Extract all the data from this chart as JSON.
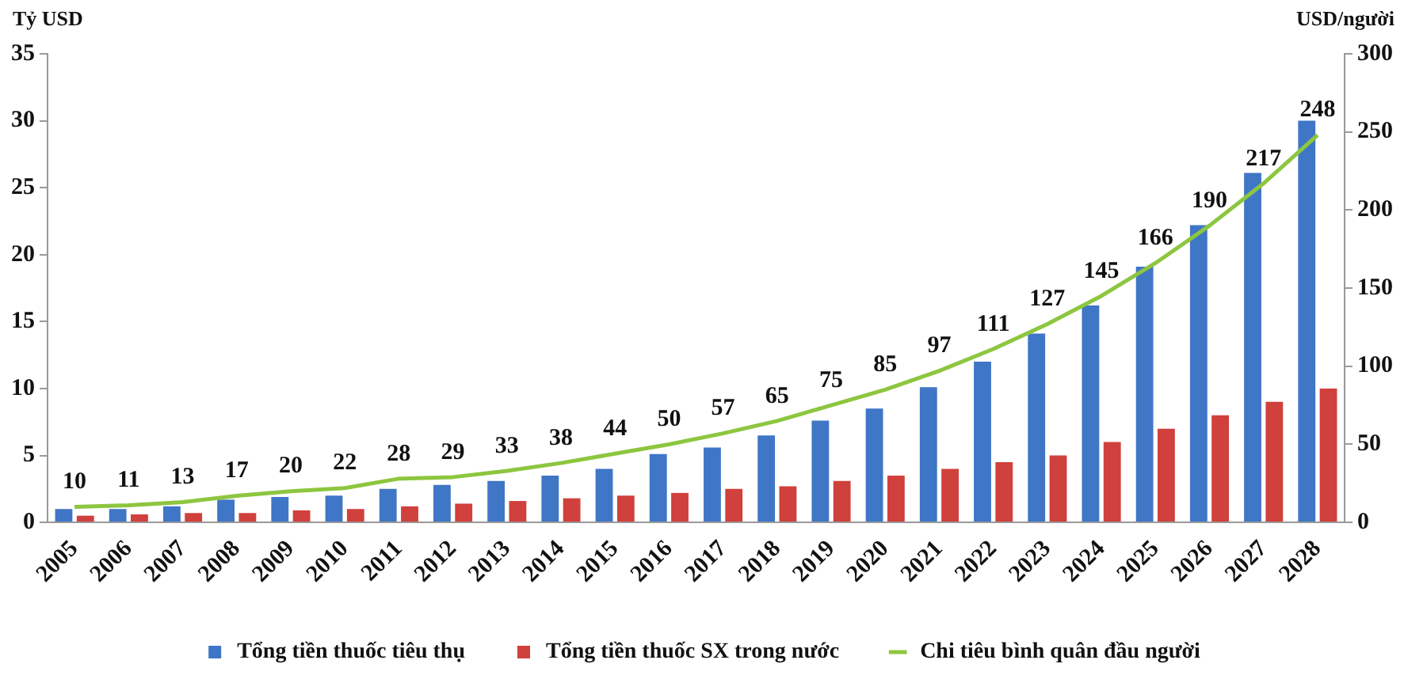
{
  "chart_data": {
    "type": "bar",
    "ylabel": "Tỷ USD",
    "y2label": "USD/người",
    "categories": [
      "2005",
      "2006",
      "2007",
      "2008",
      "2009",
      "2010",
      "2011",
      "2012",
      "2013",
      "2014",
      "2015",
      "2016",
      "2017",
      "2018",
      "2019",
      "2020",
      "2021",
      "2022",
      "2023",
      "2024",
      "2025",
      "2026",
      "2027",
      "2028"
    ],
    "series": [
      {
        "name": "Tổng tiền thuốc tiêu thụ",
        "color": "#3f76c6",
        "values": [
          1.0,
          1.0,
          1.2,
          1.7,
          1.9,
          2.0,
          2.5,
          2.8,
          3.1,
          3.5,
          4.0,
          5.1,
          5.6,
          6.5,
          7.6,
          8.5,
          10.1,
          12.0,
          14.1,
          16.2,
          19.1,
          22.2,
          26.1,
          30.0
        ]
      },
      {
        "name": "Tổng tiền thuốc SX trong nước",
        "color": "#d0403c",
        "values": [
          0.5,
          0.6,
          0.7,
          0.7,
          0.9,
          1.0,
          1.2,
          1.4,
          1.6,
          1.8,
          2.0,
          2.2,
          2.5,
          2.7,
          3.1,
          3.5,
          4.0,
          4.5,
          5.0,
          6.0,
          7.0,
          8.0,
          9.0,
          10.0
        ]
      },
      {
        "name": "Chi tiêu bình quân đầu người",
        "type": "line",
        "axis": "y2",
        "color": "#8dc63f",
        "data_labels": true,
        "values": [
          10,
          11,
          13,
          17,
          20,
          22,
          28,
          29,
          33,
          38,
          44,
          50,
          57,
          65,
          75,
          85,
          97,
          111,
          127,
          145,
          166,
          190,
          217,
          248
        ]
      }
    ],
    "ylim": [
      0,
      35
    ],
    "yticks": [
      0,
      5,
      10,
      15,
      20,
      25,
      30,
      35
    ],
    "y2lim": [
      0,
      300
    ],
    "y2ticks": [
      0,
      50,
      100,
      150,
      200,
      250,
      300
    ],
    "grid": false,
    "legend": "bottom",
    "marker": "none",
    "line_style": "solid"
  }
}
